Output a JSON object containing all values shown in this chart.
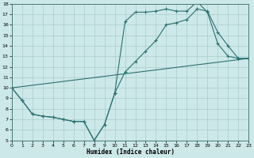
{
  "xlabel": "Humidex (Indice chaleur)",
  "bg_color": "#cce8e8",
  "grid_color": "#aacccc",
  "line_color": "#2a7070",
  "xlim": [
    0,
    23
  ],
  "ylim": [
    5,
    18
  ],
  "xticks": [
    0,
    1,
    2,
    3,
    4,
    5,
    6,
    7,
    8,
    9,
    10,
    11,
    12,
    13,
    14,
    15,
    16,
    17,
    18,
    19,
    20,
    21,
    22,
    23
  ],
  "yticks": [
    5,
    6,
    7,
    8,
    9,
    10,
    11,
    12,
    13,
    14,
    15,
    16,
    17,
    18
  ],
  "line1_x": [
    0,
    1,
    2,
    3,
    4,
    5,
    6,
    7,
    8,
    9,
    10,
    11,
    12,
    13,
    14,
    15,
    16,
    17,
    18,
    19,
    20,
    21,
    22,
    23
  ],
  "line1_y": [
    10,
    8.8,
    7.5,
    7.3,
    7.2,
    7.0,
    6.8,
    6.8,
    5.0,
    6.5,
    9.5,
    16.3,
    17.2,
    17.2,
    17.3,
    17.5,
    17.3,
    17.3,
    18.2,
    17.2,
    14.2,
    13.0,
    12.8,
    12.8
  ],
  "line2_x": [
    0,
    1,
    2,
    3,
    4,
    5,
    6,
    7,
    8,
    9,
    10,
    11,
    12,
    13,
    14,
    15,
    16,
    17,
    18,
    19,
    20,
    21,
    22,
    23
  ],
  "line2_y": [
    10,
    8.8,
    7.5,
    7.3,
    7.2,
    7.0,
    6.8,
    6.8,
    5.0,
    6.5,
    9.5,
    11.5,
    12.5,
    13.5,
    14.5,
    16.0,
    16.2,
    16.5,
    17.5,
    17.3,
    15.3,
    14.0,
    12.8,
    12.8
  ],
  "line3_x": [
    0,
    23
  ],
  "line3_y": [
    10,
    12.8
  ]
}
